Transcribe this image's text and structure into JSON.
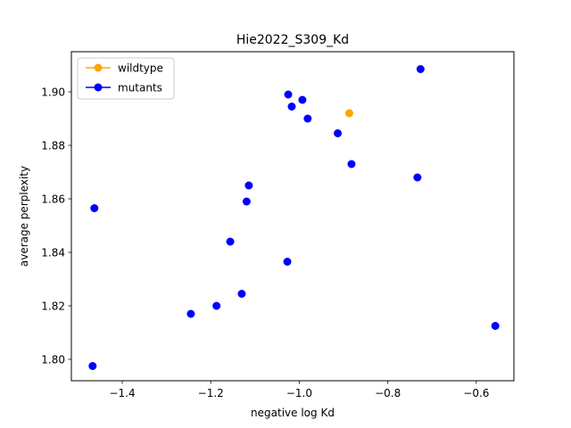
{
  "chart_data": {
    "type": "scatter",
    "title": "Hie2022_S309_Kd",
    "xlabel": "negative log Kd",
    "ylabel": "average perplexity",
    "xlim": [
      -1.515,
      -0.515
    ],
    "ylim": [
      1.792,
      1.915
    ],
    "xticks": [
      -1.4,
      -1.2,
      -1.0,
      -0.8,
      -0.6
    ],
    "xtick_labels": [
      "−1.4",
      "−1.2",
      "−1.0",
      "−0.8",
      "−0.6"
    ],
    "yticks": [
      1.8,
      1.82,
      1.84,
      1.86,
      1.88,
      1.9
    ],
    "ytick_labels": [
      "1.80",
      "1.82",
      "1.84",
      "1.86",
      "1.88",
      "1.90"
    ],
    "grid": false,
    "legend_position": "top-left",
    "series": [
      {
        "name": "wildtype",
        "color": "#ffa500",
        "points": [
          [
            -0.887,
            1.892
          ]
        ]
      },
      {
        "name": "mutants",
        "color": "#0000ff",
        "points": [
          [
            -0.726,
            1.9085
          ],
          [
            -1.025,
            1.899
          ],
          [
            -0.993,
            1.897
          ],
          [
            -1.017,
            1.8945
          ],
          [
            -0.981,
            1.89
          ],
          [
            -0.913,
            1.8845
          ],
          [
            -0.882,
            1.873
          ],
          [
            -0.733,
            1.868
          ],
          [
            -1.114,
            1.865
          ],
          [
            -1.119,
            1.859
          ],
          [
            -1.463,
            1.8565
          ],
          [
            -1.156,
            1.844
          ],
          [
            -1.027,
            1.8365
          ],
          [
            -1.13,
            1.8245
          ],
          [
            -1.187,
            1.82
          ],
          [
            -1.245,
            1.817
          ],
          [
            -0.557,
            1.8125
          ],
          [
            -1.467,
            1.7975
          ]
        ]
      }
    ]
  }
}
